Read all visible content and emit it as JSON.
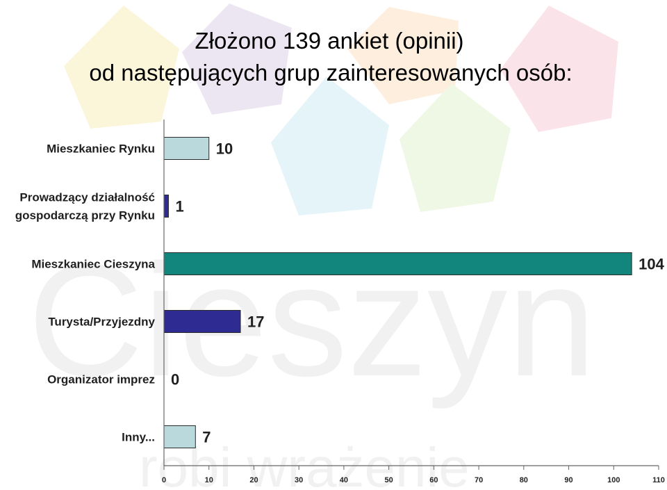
{
  "title_line1": "Złożono 139 ankiet (opinii)",
  "title_line2": "od następujących grup zainteresowanych osób:",
  "watermark": {
    "brand": "Cieszyn",
    "slogan": "robi wrażenie"
  },
  "colors": {
    "bar_light": "#b9d9dc",
    "bar_teal": "#12857d",
    "bar_navy": "#2e2c92",
    "bar_stroke": "#2a2a2a",
    "axis": "#666666"
  },
  "chart_data": {
    "type": "bar",
    "orientation": "horizontal",
    "categories": [
      [
        "Mieszkaniec Rynku"
      ],
      [
        "Prowadzący działalność",
        "gospodarczą przy Rynku"
      ],
      [
        "Mieszkaniec Cieszyna"
      ],
      [
        "Turysta/Przyjezdny"
      ],
      [
        "Organizator imprez"
      ],
      [
        "Inny..."
      ]
    ],
    "values": [
      10,
      1,
      104,
      17,
      0,
      7
    ],
    "value_labels": [
      "10",
      "1",
      "104",
      "17",
      "0",
      "7"
    ],
    "bar_colors": [
      "light",
      "navy",
      "teal",
      "navy",
      "light",
      "light"
    ],
    "xlim": [
      0,
      110
    ],
    "xticks": [
      0,
      10,
      20,
      30,
      40,
      50,
      60,
      70,
      80,
      90,
      100,
      110
    ],
    "xlabel": "",
    "ylabel": "",
    "grid": false,
    "legend": "none"
  }
}
